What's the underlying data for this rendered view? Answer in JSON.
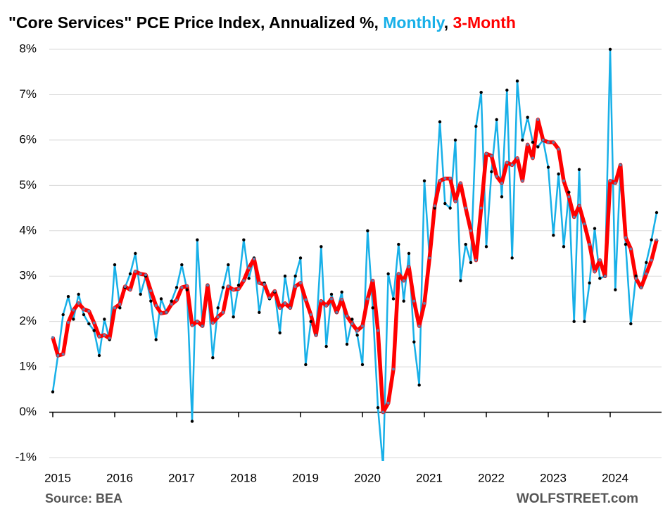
{
  "chart_data": {
    "type": "line",
    "title": "\"Core Services\" PCE Price Index, Annualized %,",
    "title_separator": ",",
    "source": "Source: BEA",
    "brand": "WOLFSTREET.com",
    "x": [
      2015,
      2015.0833,
      2015.1667,
      2015.25,
      2015.3333,
      2015.4167,
      2015.5,
      2015.5833,
      2015.6667,
      2015.75,
      2015.8333,
      2015.9167,
      2016,
      2016.0833,
      2016.1667,
      2016.25,
      2016.3333,
      2016.4167,
      2016.5,
      2016.5833,
      2016.6667,
      2016.75,
      2016.8333,
      2016.9167,
      2017,
      2017.0833,
      2017.1667,
      2017.25,
      2017.3333,
      2017.4167,
      2017.5,
      2017.5833,
      2017.6667,
      2017.75,
      2017.8333,
      2017.9167,
      2018,
      2018.0833,
      2018.1667,
      2018.25,
      2018.3333,
      2018.4167,
      2018.5,
      2018.5833,
      2018.6667,
      2018.75,
      2018.8333,
      2018.9167,
      2019,
      2019.0833,
      2019.1667,
      2019.25,
      2019.3333,
      2019.4167,
      2019.5,
      2019.5833,
      2019.6667,
      2019.75,
      2019.8333,
      2019.9167,
      2020,
      2020.0833,
      2020.1667,
      2020.25,
      2020.3333,
      2020.4167,
      2020.5,
      2020.5833,
      2020.6667,
      2020.75,
      2020.8333,
      2020.9167,
      2021,
      2021.0833,
      2021.1667,
      2021.25,
      2021.3333,
      2021.4167,
      2021.5,
      2021.5833,
      2021.6667,
      2021.75,
      2021.8333,
      2021.9167,
      2022,
      2022.0833,
      2022.1667,
      2022.25,
      2022.3333,
      2022.4167,
      2022.5,
      2022.5833,
      2022.6667,
      2022.75,
      2022.8333,
      2022.9167,
      2023,
      2023.0833,
      2023.1667,
      2023.25,
      2023.3333,
      2023.4167,
      2023.5,
      2023.5833,
      2023.6667,
      2023.75,
      2023.8333,
      2023.9167,
      2024,
      2024.0833,
      2024.1667,
      2024.25,
      2024.3333,
      2024.4167,
      2024.5,
      2024.5833,
      2024.6667,
      2024.75
    ],
    "series": [
      {
        "name": "Monthly",
        "color": "#18b0e8",
        "values": [
          0.45,
          1.25,
          2.15,
          2.55,
          2.05,
          2.6,
          2.15,
          1.95,
          1.8,
          1.25,
          2.05,
          1.6,
          3.25,
          2.3,
          2.75,
          3.05,
          3.5,
          2.6,
          3.0,
          2.45,
          1.6,
          2.5,
          2.2,
          2.45,
          2.75,
          3.25,
          2.7,
          -0.2,
          3.8,
          1.9,
          2.8,
          1.2,
          2.3,
          2.75,
          3.25,
          2.1,
          2.8,
          3.8,
          2.95,
          3.4,
          2.2,
          2.85,
          2.5,
          2.65,
          1.75,
          3.0,
          2.3,
          3.0,
          3.4,
          1.05,
          2.0,
          1.7,
          3.65,
          1.45,
          2.6,
          2.2,
          2.65,
          1.5,
          2.05,
          1.7,
          1.05,
          4.0,
          2.3,
          0.1,
          -1.2,
          3.05,
          2.5,
          3.7,
          2.45,
          3.5,
          1.55,
          0.6,
          5.1,
          3.4,
          4.5,
          6.4,
          4.6,
          4.5,
          6.0,
          2.9,
          3.7,
          3.3,
          6.3,
          7.05,
          3.65,
          5.3,
          6.45,
          4.75,
          7.1,
          3.4,
          7.3,
          6.0,
          6.5,
          5.95,
          5.85,
          6.0,
          5.4,
          3.9,
          5.25,
          3.65,
          4.85,
          2.0,
          5.35,
          2.0,
          2.85,
          4.05,
          2.95,
          3.0,
          8.0,
          2.7,
          5.45,
          3.7,
          1.95,
          3.0,
          2.75,
          3.3,
          3.8,
          4.4
        ]
      },
      {
        "name": "3-Month",
        "color": "#ff0000",
        "values": [
          1.65,
          1.25,
          1.28,
          1.98,
          2.25,
          2.4,
          2.27,
          2.23,
          1.97,
          1.67,
          1.7,
          1.63,
          2.3,
          2.38,
          2.77,
          2.7,
          3.1,
          3.05,
          3.03,
          2.68,
          2.35,
          2.18,
          2.2,
          2.38,
          2.47,
          2.75,
          2.78,
          1.92,
          2.0,
          1.9,
          2.8,
          1.97,
          2.1,
          2.2,
          2.77,
          2.7,
          2.72,
          2.9,
          3.18,
          3.38,
          2.85,
          2.82,
          2.52,
          2.67,
          2.3,
          2.4,
          2.3,
          2.77,
          2.85,
          2.48,
          2.15,
          1.7,
          2.45,
          2.35,
          2.5,
          2.2,
          2.48,
          2.12,
          1.95,
          1.8,
          1.9,
          2.5,
          2.9,
          1.8,
          0.0,
          0.2,
          0.95,
          3.05,
          2.9,
          3.2,
          2.45,
          1.9,
          2.4,
          3.4,
          4.55,
          5.1,
          5.15,
          5.15,
          4.65,
          5.05,
          4.5,
          4.0,
          3.35,
          4.5,
          5.7,
          5.65,
          5.2,
          5.05,
          5.5,
          5.45,
          5.6,
          5.1,
          5.9,
          5.6,
          6.45,
          6.0,
          5.95,
          5.95,
          5.8,
          5.1,
          4.75,
          4.3,
          4.55,
          4.15,
          3.7,
          3.1,
          3.35,
          3.0,
          5.1,
          5.05,
          5.45,
          3.85,
          3.6,
          2.95,
          2.75,
          3.05,
          3.35,
          3.8
        ]
      }
    ],
    "xlim": [
      2015,
      2024.75
    ],
    "xticks": [
      2015,
      2016,
      2017,
      2018,
      2019,
      2020,
      2021,
      2022,
      2023,
      2024
    ],
    "ylim": [
      -1,
      8
    ],
    "yticks": [
      {
        "value": -1,
        "label": "-1%"
      },
      {
        "value": 0,
        "label": "0%"
      },
      {
        "value": 1,
        "label": "1%"
      },
      {
        "value": 2,
        "label": "2%"
      },
      {
        "value": 3,
        "label": "3%"
      },
      {
        "value": 4,
        "label": "4%"
      },
      {
        "value": 5,
        "label": "5%"
      },
      {
        "value": 6,
        "label": "6%"
      },
      {
        "value": 7,
        "label": "7%"
      },
      {
        "value": 8,
        "label": "8%"
      }
    ],
    "grid": true
  }
}
